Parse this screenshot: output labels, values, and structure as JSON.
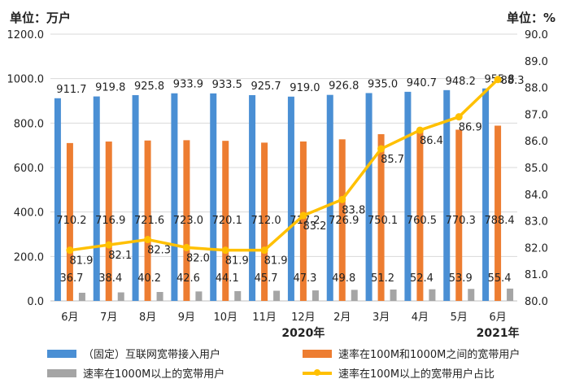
{
  "units": {
    "left": "单位：万户",
    "right": "单位：%"
  },
  "chart_data": {
    "type": "bar",
    "categories": [
      "6月",
      "7月",
      "8月",
      "9月",
      "10月",
      "11月",
      "12月",
      "2月",
      "3月",
      "4月",
      "5月",
      "6月"
    ],
    "year_labels": [
      {
        "text": "2020年",
        "after_index": 6
      },
      {
        "text": "2021年",
        "after_index": 11
      }
    ],
    "y_left": {
      "ylim": [
        0,
        1200
      ],
      "ticks": [
        "0.0",
        "200.0",
        "400.0",
        "600.0",
        "800.0",
        "1000.0",
        "1200.0"
      ]
    },
    "y_right": {
      "ylim": [
        80,
        90
      ],
      "ticks": [
        "80.0",
        "81.0",
        "82.0",
        "83.0",
        "84.0",
        "85.0",
        "86.0",
        "87.0",
        "88.0",
        "89.0",
        "90.0"
      ]
    },
    "series": [
      {
        "name": "（固定）互联网宽带接入用户",
        "type": "bar",
        "axis": "left",
        "color": "#4a8fd4",
        "values": [
          911.7,
          919.8,
          925.8,
          933.9,
          933.5,
          925.7,
          919.0,
          926.8,
          935.0,
          940.7,
          948.2,
          955.8
        ],
        "labels": [
          "911.7",
          "919.8",
          "925.8",
          "933.9",
          "933.5",
          "925.7",
          "919.0",
          "926.8",
          "935.0",
          "940.7",
          "948.2",
          "955.8"
        ]
      },
      {
        "name": "速率在100M和1000M之间的宽带用户",
        "type": "bar",
        "axis": "left",
        "color": "#ed7d31",
        "values": [
          710.2,
          716.9,
          721.6,
          723.0,
          720.1,
          712.0,
          717.2,
          726.9,
          750.1,
          760.5,
          770.3,
          788.4
        ],
        "labels": [
          "710.2",
          "716.9",
          "721.6",
          "723.0",
          "720.1",
          "712.0",
          "717.2",
          "726.9",
          "750.1",
          "760.5",
          "770.3",
          "788.4"
        ]
      },
      {
        "name": "速率在1000M以上的宽带用户",
        "type": "bar",
        "axis": "left",
        "color": "#a5a5a5",
        "values": [
          36.7,
          38.4,
          40.2,
          42.6,
          44.1,
          45.7,
          47.3,
          49.8,
          51.2,
          52.4,
          53.9,
          55.4
        ],
        "labels": [
          "36.7",
          "38.4",
          "40.2",
          "42.6",
          "44.1",
          "45.7",
          "47.3",
          "49.8",
          "51.2",
          "52.4",
          "53.9",
          "55.4"
        ]
      },
      {
        "name": "速率在100M以上的宽带用户占比",
        "type": "line",
        "axis": "right",
        "color": "#ffc000",
        "values": [
          81.9,
          82.1,
          82.3,
          82.0,
          81.9,
          81.9,
          83.2,
          83.8,
          85.7,
          86.4,
          86.9,
          88.3
        ],
        "labels": [
          "81.9",
          "82.1",
          "82.3",
          "82.0",
          "81.9",
          "81.9",
          "83.2",
          "83.8",
          "85.7",
          "86.4",
          "86.9",
          "88.3"
        ]
      }
    ],
    "grid": true,
    "legend_position": "bottom"
  }
}
